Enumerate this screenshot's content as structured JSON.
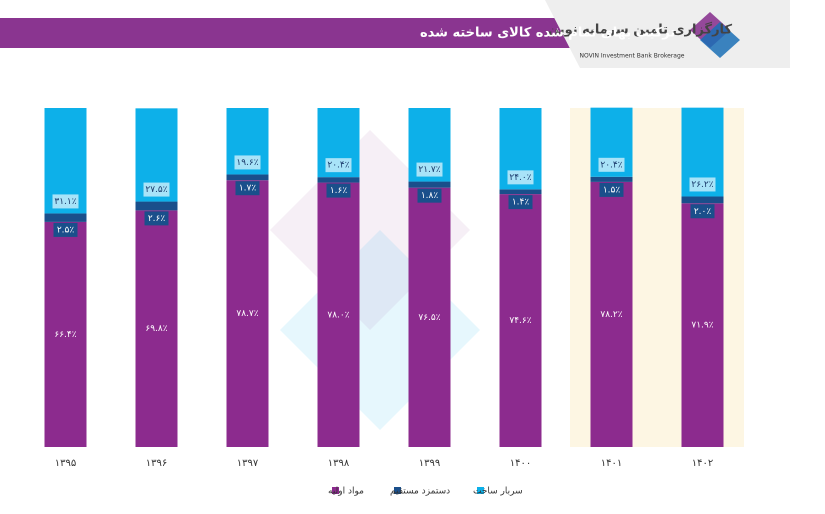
{
  "logo": {
    "name": "کارگزاری تامین سرمایه نوین",
    "english": "NOVIN Investment Bank Brokerage"
  },
  "chart_data": {
    "type": "stacked-bar",
    "title": "ترکیب بهای تمام شده کالای ساخته شده",
    "categories": [
      "۱۳۹۵",
      "۱۳۹۶",
      "۱۳۹۷",
      "۱۳۹۸",
      "۱۳۹۹",
      "۱۴۰۰",
      "۱۴۰۱",
      "۱۴۰۲"
    ],
    "ylim": [
      0,
      100
    ],
    "series": [
      {
        "name": "مواد اولیه",
        "color": "#8c2b8e",
        "values": [
          66.4,
          69.8,
          78.7,
          78.0,
          76.5,
          74.6,
          78.2,
          71.9
        ],
        "value_labels": [
          "۶۶.۴٪",
          "۶۹.۸٪",
          "۷۸.۷٪",
          "۷۸.۰٪",
          "۷۶.۵٪",
          "۷۴.۶٪",
          "۷۸.۲٪",
          "۷۱.۹٪"
        ]
      },
      {
        "name": "دستمزد مستقیم",
        "color": "#1a4f8b",
        "values": [
          2.5,
          2.6,
          1.7,
          1.6,
          1.8,
          1.4,
          1.5,
          2.0
        ],
        "value_labels": [
          "۲.۵٪",
          "۲.۶٪",
          "۱.۷٪",
          "۱.۶٪",
          "۱.۸٪",
          "۱.۴٪",
          "۱.۵٪",
          "۲.۰٪"
        ]
      },
      {
        "name": "سربار ساخت",
        "color": "#0db0e9",
        "values": [
          31.1,
          27.5,
          19.6,
          20.4,
          21.7,
          24.0,
          20.4,
          26.2
        ],
        "value_labels": [
          "۳۱.۱٪",
          "۲۷.۵٪",
          "۱۹.۶٪",
          "۲۰.۴٪",
          "۲۱.۷٪",
          "۲۴.۰٪",
          "۲۰.۴٪",
          "۲۶.۲٪"
        ]
      }
    ]
  }
}
